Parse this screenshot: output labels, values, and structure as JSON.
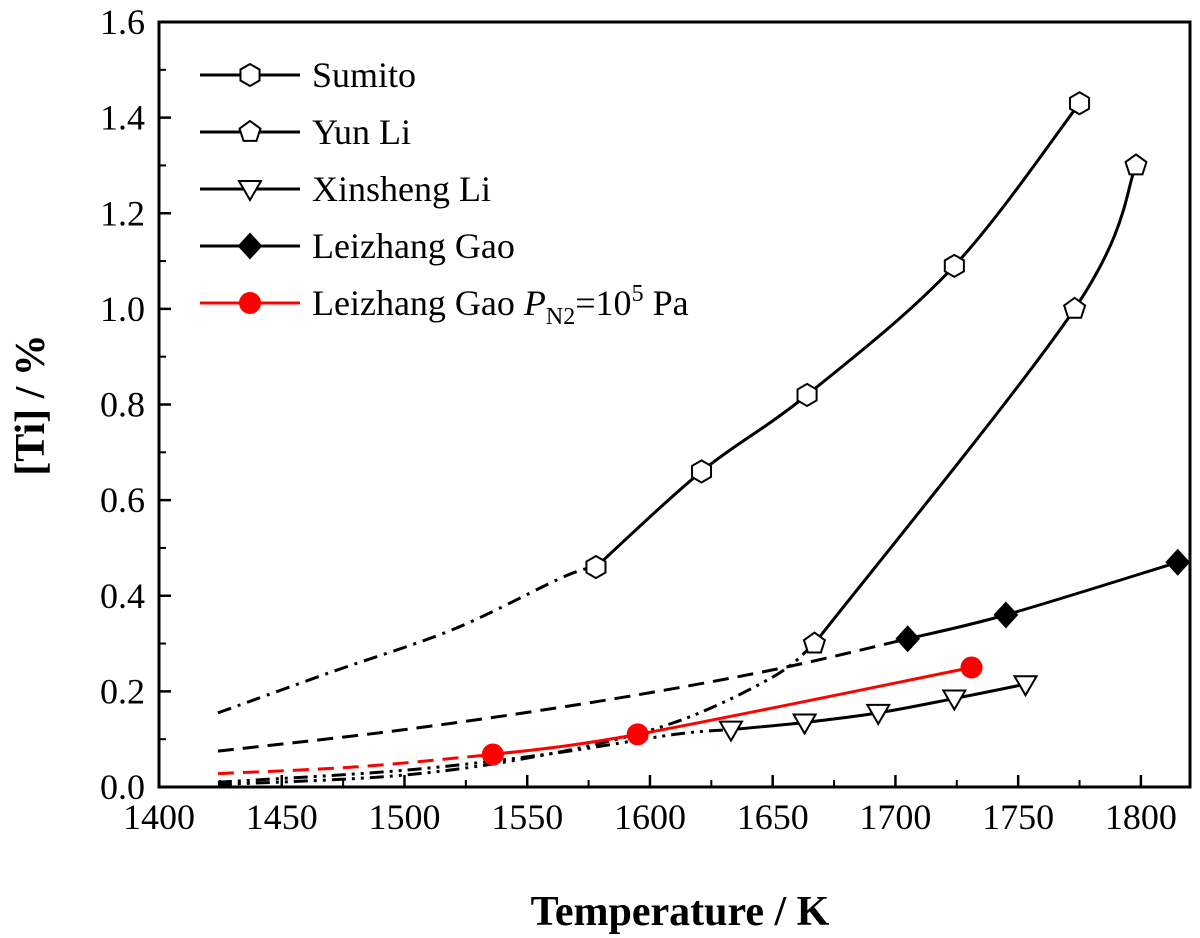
{
  "chart_data": {
    "type": "line",
    "xlabel": "Temperature / K",
    "ylabel": "[Ti] / %",
    "xlim": [
      1400,
      1820
    ],
    "ylim": [
      0,
      1.6
    ],
    "xticks": [
      1400,
      1450,
      1500,
      1550,
      1600,
      1650,
      1700,
      1750,
      1800
    ],
    "yticks": [
      0.0,
      0.2,
      0.4,
      0.6,
      0.8,
      1.0,
      1.2,
      1.4,
      1.6
    ],
    "xtick_labels": [
      "1400",
      "1450",
      "1500",
      "1550",
      "1600",
      "1650",
      "1700",
      "1750",
      "1800"
    ],
    "ytick_labels": [
      "0.0",
      "0.2",
      "0.4",
      "0.6",
      "0.8",
      "1.0",
      "1.2",
      "1.4",
      "1.6"
    ],
    "grid": false,
    "legend_position": "top-left",
    "series": [
      {
        "name": "Sumito",
        "marker": "hexagon-open",
        "color": "#000000",
        "x": [
          1578,
          1621,
          1664,
          1724,
          1775
        ],
        "y": [
          0.46,
          0.66,
          0.82,
          1.09,
          1.43
        ],
        "extrapolation": {
          "style": "dash-dot",
          "x": [
            1424,
            1470,
            1520,
            1565
          ],
          "y": [
            0.155,
            0.24,
            0.33,
            0.44
          ]
        }
      },
      {
        "name": "Yun Li",
        "marker": "pentagon-open",
        "color": "#000000",
        "x": [
          1667,
          1773,
          1798
        ],
        "y": [
          0.3,
          1.0,
          1.3
        ],
        "extrapolation": {
          "style": "dash-dot-dot",
          "x": [
            1424,
            1500,
            1560,
            1610,
            1650
          ],
          "y": [
            0.005,
            0.025,
            0.07,
            0.135,
            0.23
          ]
        }
      },
      {
        "name": "Xinsheng Li",
        "marker": "triangle-down-open",
        "color": "#000000",
        "x": [
          1633,
          1663,
          1693,
          1724,
          1753
        ],
        "y": [
          0.12,
          0.135,
          0.155,
          0.185,
          0.215
        ],
        "extrapolation": {
          "style": "dash-dot-dot",
          "x": [
            1424,
            1500,
            1560,
            1610
          ],
          "y": [
            0.01,
            0.035,
            0.07,
            0.11
          ]
        }
      },
      {
        "name": "Leizhang Gao",
        "marker": "diamond-filled",
        "color": "#000000",
        "x": [
          1705,
          1745,
          1815
        ],
        "y": [
          0.31,
          0.36,
          0.47
        ],
        "extrapolation": {
          "style": "dash",
          "x": [
            1424,
            1500,
            1580,
            1650
          ],
          "y": [
            0.075,
            0.12,
            0.18,
            0.245
          ]
        }
      },
      {
        "name": "Leizhang Gao P_N2=10^5 Pa",
        "marker": "circle-filled",
        "color": "#ff0000",
        "x": [
          1536,
          1595,
          1731
        ],
        "y": [
          0.068,
          0.11,
          0.25
        ],
        "extrapolation": {
          "style": "dash",
          "x": [
            1424,
            1480,
            1530
          ],
          "y": [
            0.028,
            0.042,
            0.065
          ]
        }
      }
    ],
    "legend": {
      "entries": [
        {
          "label": "Sumito",
          "marker": "hexagon-open",
          "color": "#000000"
        },
        {
          "label": "Yun Li",
          "marker": "pentagon-open",
          "color": "#000000"
        },
        {
          "label": "Xinsheng Li",
          "marker": "triangle-down-open",
          "color": "#000000"
        },
        {
          "label": "Leizhang Gao",
          "marker": "diamond-filled",
          "color": "#000000"
        },
        {
          "label_parts": {
            "prefix": "Leizhang Gao ",
            "P": "P",
            "sub": "N2",
            "eq": "=10",
            "sup": "5",
            "unit": " Pa"
          },
          "marker": "circle-filled",
          "color": "#ff0000"
        }
      ]
    }
  }
}
